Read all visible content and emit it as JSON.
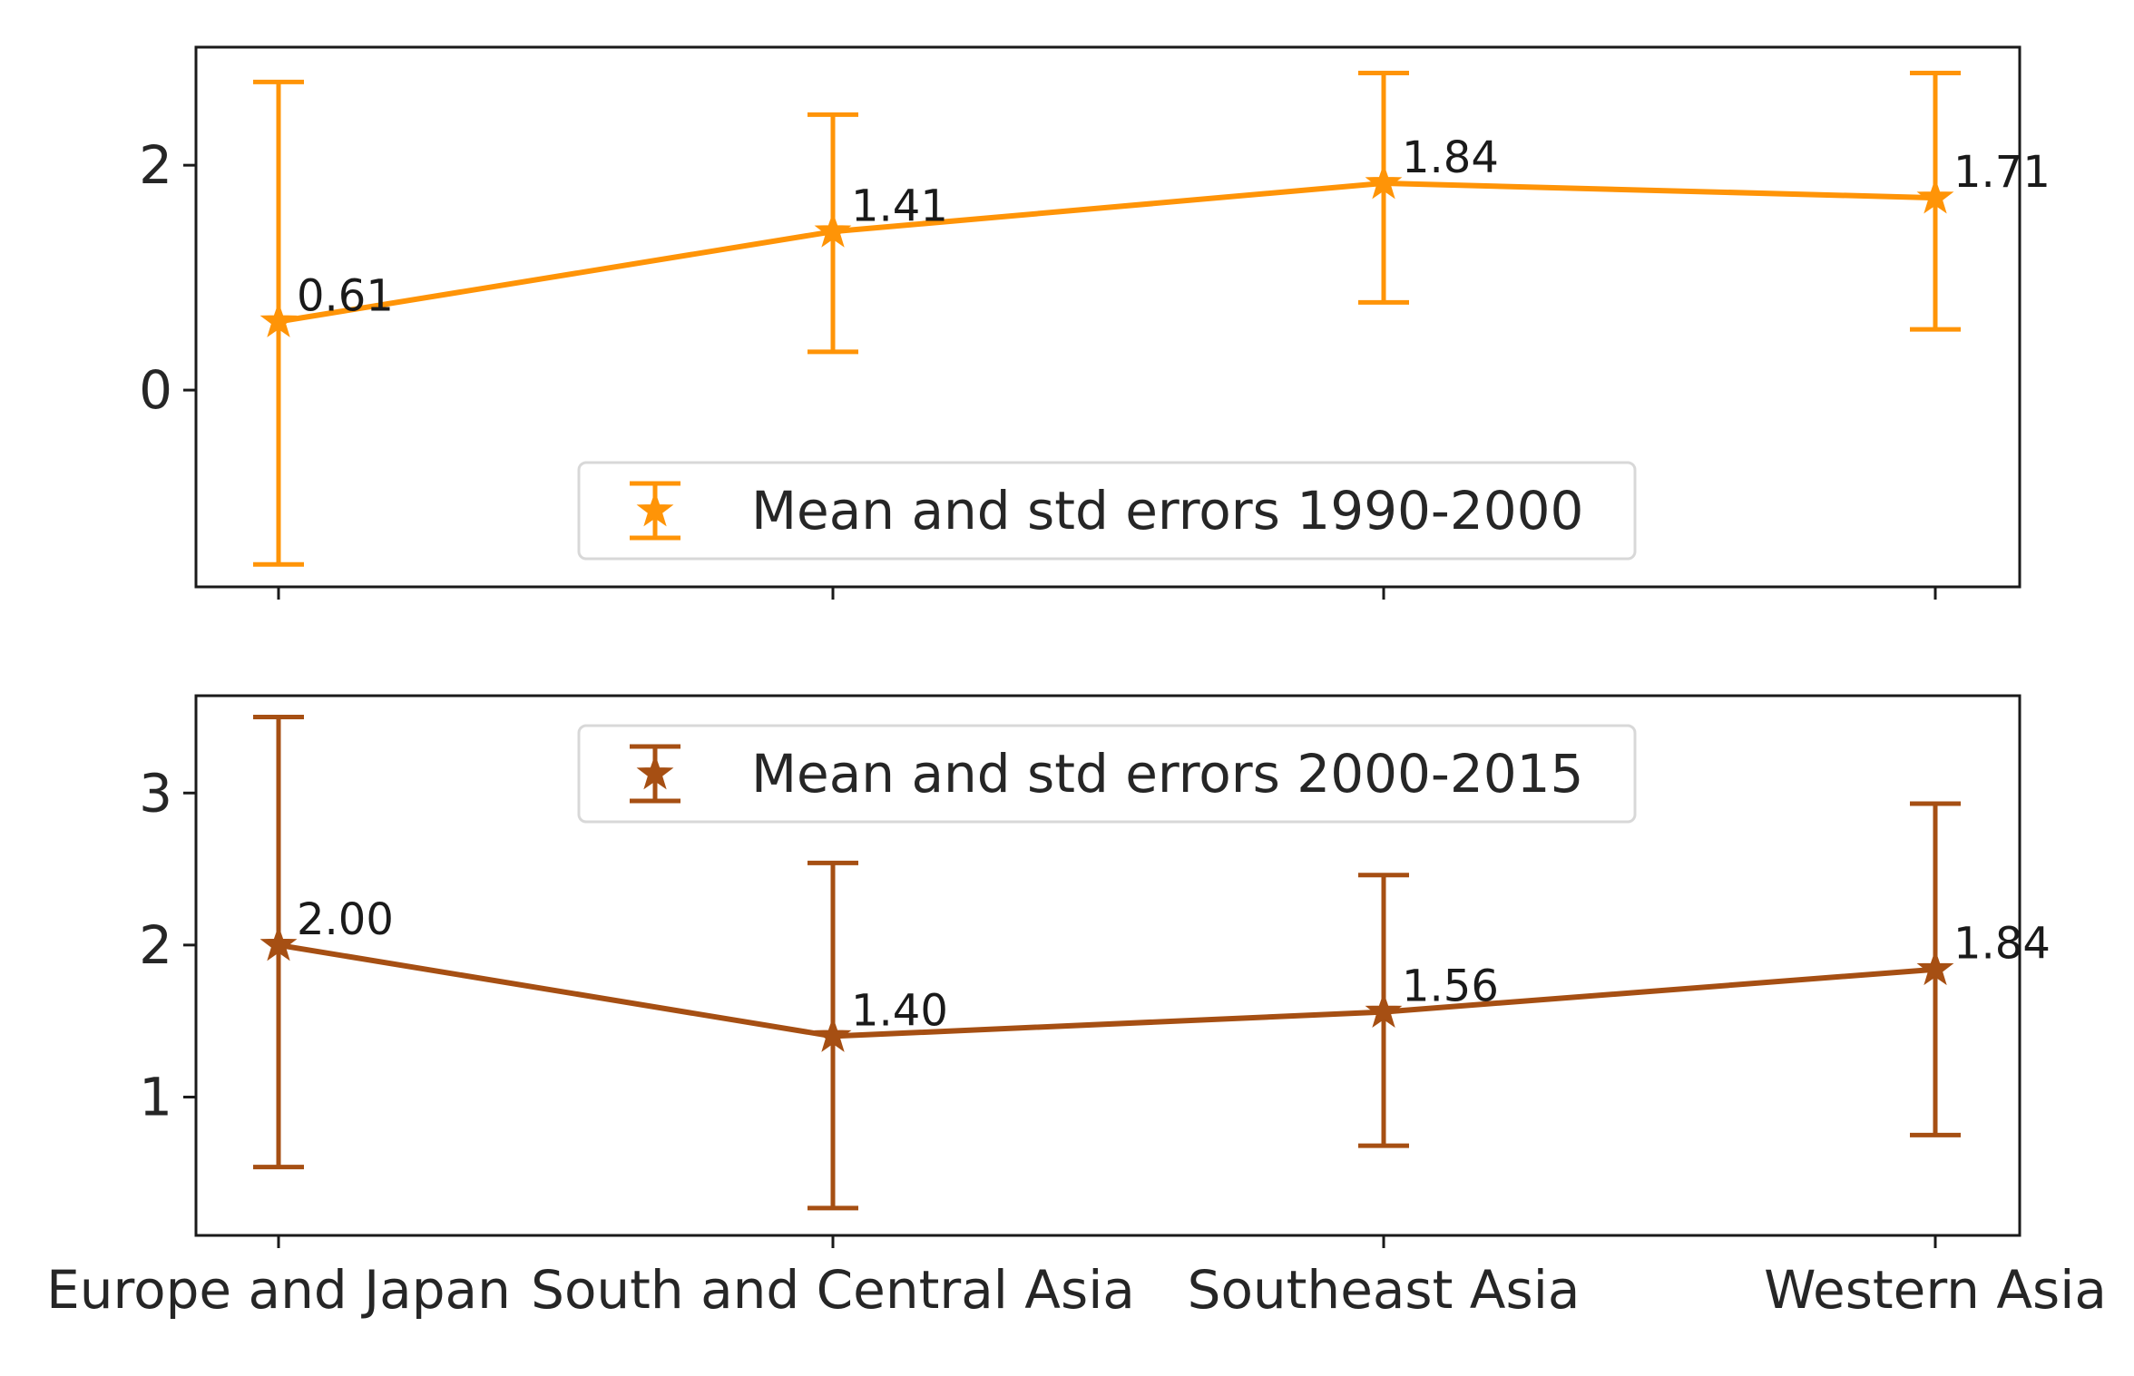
{
  "chart_data": [
    {
      "type": "line",
      "categories": [
        "Europe and Japan",
        "South and Central Asia",
        "Southeast Asia",
        "Western Asia"
      ],
      "series": [
        {
          "name": "Mean and std errors 1990-2000",
          "values": [
            0.61,
            1.41,
            1.84,
            1.71
          ],
          "error_low": [
            -1.55,
            0.34,
            0.78,
            0.54
          ],
          "error_high": [
            2.74,
            2.45,
            2.82,
            2.82
          ],
          "color": "#ff9407",
          "marker": "star"
        }
      ],
      "data_labels": [
        "0.61",
        "1.41",
        "1.84",
        "1.71"
      ],
      "yticks": [
        0,
        2
      ],
      "ytick_labels": [
        "0",
        "2"
      ],
      "ylim": [
        -1.75,
        3.05
      ],
      "legend_position": "lower-center",
      "grid": false
    },
    {
      "type": "line",
      "categories": [
        "Europe and Japan",
        "South and Central Asia",
        "Southeast Asia",
        "Western Asia"
      ],
      "series": [
        {
          "name": "Mean and std errors 2000-2015",
          "values": [
            2.0,
            1.4,
            1.56,
            1.84
          ],
          "error_low": [
            0.54,
            0.27,
            0.68,
            0.75
          ],
          "error_high": [
            3.5,
            2.54,
            2.46,
            2.93
          ],
          "color": "#a64f13",
          "marker": "star"
        }
      ],
      "data_labels": [
        "2.00",
        "1.40",
        "1.56",
        "1.84"
      ],
      "yticks": [
        1,
        2,
        3
      ],
      "ytick_labels": [
        "1",
        "2",
        "3"
      ],
      "ylim": [
        0.09,
        3.64
      ],
      "legend_position": "upper-center",
      "grid": false,
      "xtick_labels": [
        "Europe and Japan",
        "South and Central Asia",
        "Southeast Asia",
        "Western Asia"
      ]
    }
  ]
}
